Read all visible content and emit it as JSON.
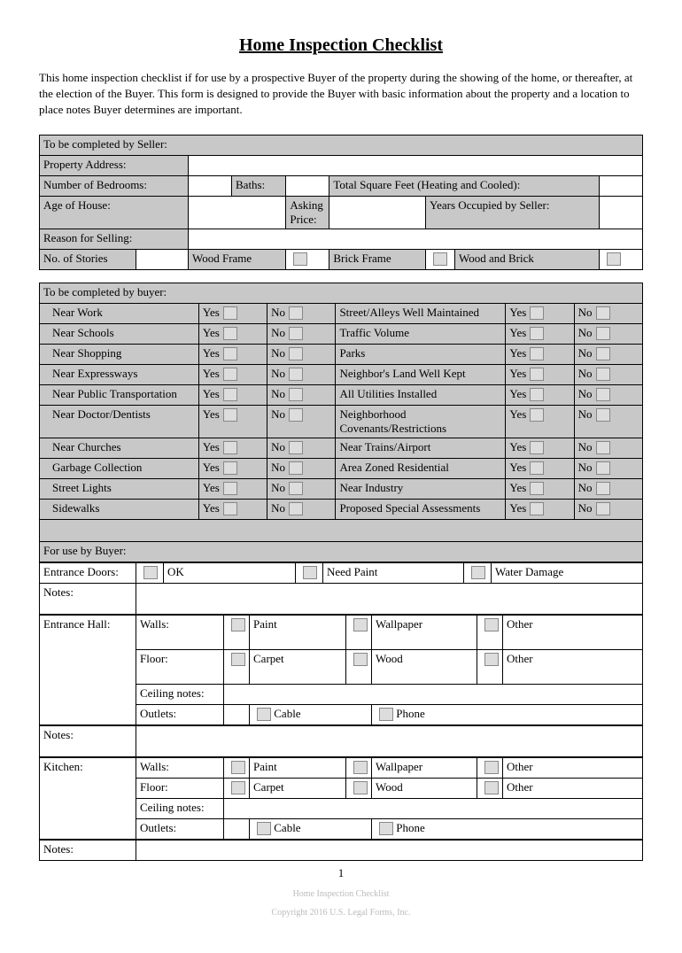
{
  "title": "Home Inspection Checklist",
  "intro": "This home inspection checklist if for use by a prospective Buyer of the property during the showing of the home, or thereafter, at the election of the Buyer.  This form is designed to provide the Buyer with basic information about the property and a location to place notes Buyer determines are important.",
  "seller": {
    "header": "To be completed by Seller:",
    "addr": "Property Address:",
    "bed": "Number of Bedrooms:",
    "baths": "Baths:",
    "sqft": "Total Square Feet (Heating and Cooled):",
    "age": "Age of House:",
    "ask": "Asking Price:",
    "yrs": "Years Occupied by Seller:",
    "reason": "Reason for Selling:",
    "stories": "No. of Stories",
    "wood": "Wood Frame",
    "brick": "Brick Frame",
    "wb": "Wood and Brick"
  },
  "buyer": {
    "header": "To be completed by buyer:",
    "yes": "Yes",
    "no": "No",
    "left": [
      "Near Work",
      "Near Schools",
      "Near Shopping",
      "Near Expressways",
      "Near Public Transportation",
      "Near Doctor/Dentists",
      "Near Churches",
      "Garbage Collection",
      "Street Lights",
      "Sidewalks"
    ],
    "right": [
      "Street/Alleys Well Maintained",
      "Traffic Volume",
      "Parks",
      "Neighbor's Land Well Kept",
      "All Utilities Installed",
      "Neighborhood Covenants/Restrictions",
      "Near Trains/Airport",
      "Area Zoned Residential",
      "Near Industry",
      "Proposed Special Assessments"
    ]
  },
  "foruse": "For use by Buyer:",
  "doors": {
    "label": "Entrance Doors:",
    "ok": "OK",
    "paint": "Need Paint",
    "water": "Water Damage"
  },
  "notes": "Notes:",
  "hall": {
    "label": "Entrance Hall:",
    "walls": "Walls:",
    "paint": "Paint",
    "wallpaper": "Wallpaper",
    "other": "Other",
    "floor": "Floor:",
    "carpet": "Carpet",
    "wood": "Wood",
    "ceil": "Ceiling notes:",
    "out": "Outlets:",
    "cable": "Cable",
    "phone": "Phone"
  },
  "kitchen": "Kitchen:",
  "page": "1",
  "foot1": "Home Inspection Checklist",
  "foot2": "Copyright 2016 U.S. Legal Forms, Inc."
}
